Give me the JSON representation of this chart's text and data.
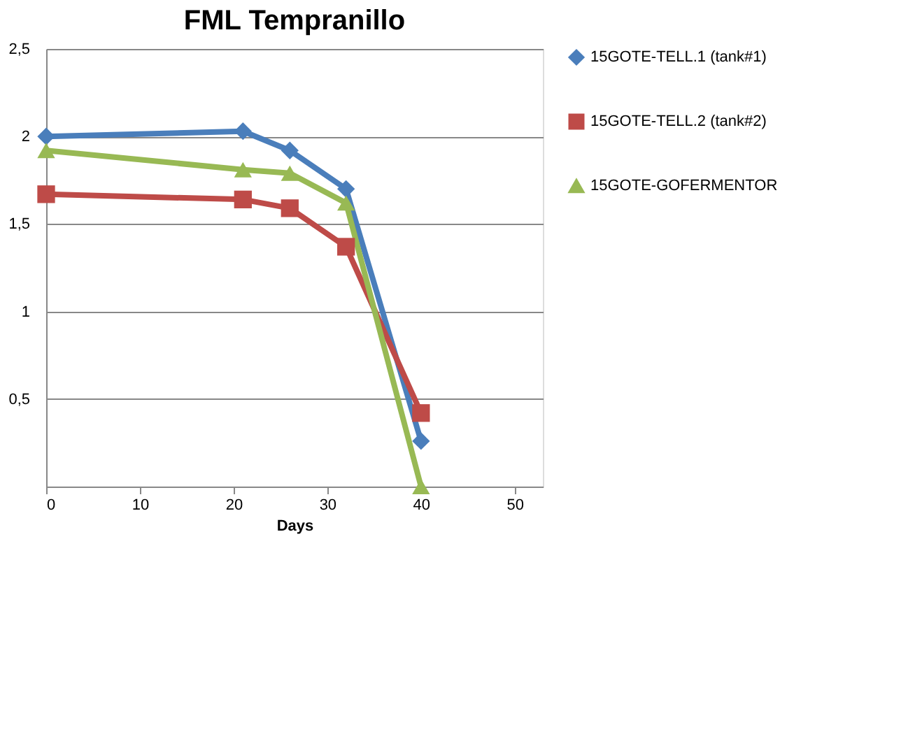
{
  "chart_data": {
    "type": "line",
    "title": "FML Tempranillo",
    "xlabel": "Days",
    "x": [
      0,
      21,
      26,
      32,
      40
    ],
    "series": [
      {
        "name": "15GOTE-TELL.1 (tank#1)",
        "color": "#4a7ebb",
        "marker": "diamond",
        "values": [
          2.0,
          2.03,
          1.92,
          1.7,
          0.26
        ]
      },
      {
        "name": "15GOTE-TELL.2 (tank#2)",
        "color": "#be4b48",
        "marker": "square",
        "values": [
          1.67,
          1.64,
          1.59,
          1.37,
          0.42
        ]
      },
      {
        "name": "15GOTE-GOFERMENTOR",
        "color": "#98b954",
        "marker": "triangle",
        "values": [
          1.92,
          1.81,
          1.79,
          1.62,
          0.0
        ]
      }
    ],
    "xlim": [
      0,
      53
    ],
    "xticks": [
      0,
      10,
      20,
      30,
      40,
      50
    ],
    "ylim": [
      0,
      2.5
    ],
    "yticks": [
      {
        "value": 0,
        "label": null
      },
      {
        "value": 0.5,
        "label": "0,5"
      },
      {
        "value": 1,
        "label": "1"
      },
      {
        "value": 1.5,
        "label": "1,5"
      },
      {
        "value": 2,
        "label": "2"
      },
      {
        "value": 2.5,
        "label": "2,5"
      }
    ],
    "grid": "y",
    "legend": "right"
  }
}
